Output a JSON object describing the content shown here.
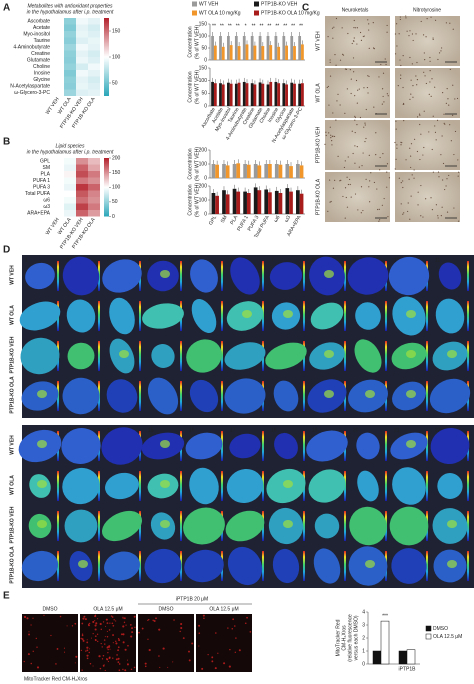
{
  "panels": {
    "a": "A",
    "b": "B",
    "c": "C",
    "d": "D",
    "e": "E"
  },
  "legend": [
    {
      "name": "WT VEH",
      "color": "#9a9a9a"
    },
    {
      "name": "PTP1B-KO VEH",
      "color": "#1a1a1a"
    },
    {
      "name": "WT OLA 10 mg/Kg",
      "color": "#f0962a"
    },
    {
      "name": "PTP1B-KO OLA 10 mg/Kg",
      "color": "#a81c1c"
    }
  ],
  "panel_a": {
    "heatmap": {
      "title": [
        "Metabolites with antioxidant properties",
        "in the hypothalamus after i.p. treatment"
      ],
      "rows": [
        "Ascorbate",
        "Acetate",
        "Myo-inositol",
        "Taurine",
        "4-Aminobutyrate",
        "Creatine",
        "Glutamate",
        "Choline",
        "Inosine",
        "Glycine",
        "N-Acetylaspartate",
        "ω-Glycero-3-PC"
      ],
      "columns": [
        "WT VEH",
        "WT OLA",
        "PTP1B-KO VEH",
        "PTP1B-KO OLA"
      ],
      "values": [
        [
          100,
          60,
          95,
          90
        ],
        [
          100,
          55,
          90,
          85
        ],
        [
          100,
          62,
          92,
          88
        ],
        [
          100,
          58,
          88,
          92
        ],
        [
          100,
          65,
          95,
          90
        ],
        [
          100,
          60,
          90,
          85
        ],
        [
          100,
          58,
          93,
          88
        ],
        [
          100,
          62,
          85,
          95
        ],
        [
          100,
          55,
          95,
          90
        ],
        [
          100,
          60,
          90,
          85
        ],
        [
          100,
          58,
          92,
          88
        ],
        [
          100,
          65,
          88,
          90
        ]
      ],
      "clim": [
        25,
        175
      ],
      "cticks": [
        50,
        100,
        150
      ]
    },
    "bars": {
      "ylabel": [
        "Concentration",
        "(% of WT VEH)"
      ],
      "categories": [
        "Ascorbate",
        "Acetate",
        "Myo-inositol",
        "Taurine",
        "4-Aminobutyrate",
        "Creatine",
        "Glutamate",
        "Choline",
        "Inosine",
        "Glycine",
        "N-Acetylaspartate",
        "ω-Glycero-3-PC"
      ],
      "ylim": [
        0,
        150
      ],
      "yticks": [
        0,
        50,
        100,
        150
      ],
      "top": [
        [
          100,
          100,
          100,
          100,
          100,
          100,
          100,
          100,
          100,
          100,
          100,
          100
        ],
        [
          60,
          55,
          62,
          58,
          65,
          60,
          58,
          62,
          55,
          60,
          58,
          65
        ]
      ],
      "bottom": [
        [
          95,
          90,
          92,
          88,
          95,
          90,
          93,
          85,
          95,
          90,
          92,
          88
        ],
        [
          90,
          85,
          88,
          92,
          90,
          85,
          88,
          95,
          90,
          85,
          88,
          90
        ]
      ],
      "sig": [
        "**",
        "**",
        "**",
        "**",
        "*",
        "**",
        "**",
        "**",
        "**",
        "**",
        "**",
        "**"
      ]
    }
  },
  "panel_b": {
    "heatmap": {
      "title": [
        "Lipid species",
        "in the hypothalamus after i.p. treatment"
      ],
      "rows": [
        "GPL",
        "SM",
        "PLA",
        "PUFA 1",
        "PUFA 3",
        "Total PUFA",
        "ω6",
        "ω3",
        "ARA+EPA"
      ],
      "columns": [
        "WT VEH",
        "WT OLA",
        "PTP1B-KO VEH",
        "PTP1B-KO OLA"
      ],
      "values": [
        [
          100,
          95,
          150,
          130
        ],
        [
          100,
          90,
          170,
          140
        ],
        [
          100,
          105,
          180,
          160
        ],
        [
          100,
          95,
          160,
          150
        ],
        [
          100,
          90,
          190,
          170
        ],
        [
          100,
          100,
          175,
          155
        ],
        [
          100,
          95,
          165,
          150
        ],
        [
          100,
          85,
          185,
          160
        ],
        [
          100,
          90,
          170,
          145
        ]
      ],
      "clim": [
        0,
        200
      ],
      "cticks": [
        0,
        50,
        100,
        150,
        200
      ]
    },
    "bars": {
      "ylabel": [
        "Concentration",
        "(% of WT VEH)"
      ],
      "categories": [
        "GPL",
        "SM",
        "PLA",
        "PUFA 1",
        "PUFA 3",
        "Total PUFA",
        "ω6",
        "ω3",
        "ARA+EPA"
      ],
      "ylim": [
        0,
        200
      ],
      "yticks": [
        0,
        100,
        200
      ],
      "top": [
        [
          100,
          100,
          100,
          100,
          100,
          100,
          100,
          100,
          100
        ],
        [
          95,
          90,
          105,
          95,
          90,
          100,
          95,
          85,
          90
        ]
      ],
      "bottom": [
        [
          150,
          170,
          180,
          160,
          190,
          175,
          165,
          185,
          170
        ],
        [
          130,
          140,
          160,
          150,
          170,
          155,
          150,
          160,
          145
        ]
      ]
    }
  },
  "panel_c": {
    "columns": [
      "Neuroketals",
      "Nitrotyrosine"
    ],
    "rows": [
      "WT VEH",
      "WT OLA",
      "PTP1B-KO VEH",
      "PTP1B-KO OLA"
    ]
  },
  "panel_d": {
    "rows": [
      "WT VEH",
      "WT OLA",
      "PTP1B-KO VEH",
      "PTP1B-KO OLA"
    ],
    "blocks": [
      [
        1,
        2,
        3,
        4,
        5,
        6,
        7,
        8,
        9,
        10,
        11
      ],
      [
        12,
        13,
        14,
        15,
        16,
        17,
        18,
        19,
        20,
        21,
        22
      ]
    ]
  },
  "panel_e": {
    "group": "iPTP1B 20 μM",
    "columns": [
      "DMSO",
      "OLA 12.5 μM",
      "DMSO",
      "OLA 12.5 μM"
    ],
    "caption": "MitoTracker Red CM-H₂Xros",
    "chart": {
      "ylabel": [
        "MitoTracker Red",
        "CM-H₂Xros",
        "(relative fluorescence",
        "versus each DMSO)"
      ],
      "categories": [
        null,
        "iPTP1B"
      ],
      "series": [
        {
          "name": "DMSO",
          "color": "#111111",
          "values": [
            1,
            1
          ]
        },
        {
          "name": "OLA 12.5 μM",
          "color": "#ffffff",
          "values": [
            3.3,
            1.1
          ]
        }
      ],
      "ylim": [
        0,
        4
      ],
      "yticks": [
        0,
        1,
        2,
        3,
        4
      ],
      "annotation": "***"
    }
  }
}
